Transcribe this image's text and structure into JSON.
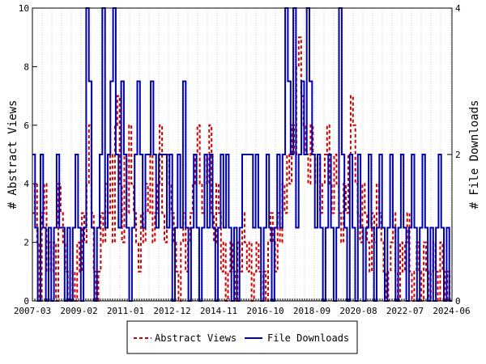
{
  "chart_data": {
    "type": "line",
    "ylabel_left": "# Abstract Views",
    "ylabel_right": "# File Downloads",
    "x_ticks": [
      "2007-03",
      "2009-02",
      "2011-01",
      "2012-12",
      "2014-11",
      "2016-10",
      "2018-09",
      "2020-08",
      "2022-07",
      "2024-06"
    ],
    "y_left_ticks": [
      "0",
      "2",
      "4",
      "6",
      "8",
      "10"
    ],
    "y_right_ticks": [
      "0",
      "2",
      "4"
    ],
    "ylim_left": [
      0,
      10
    ],
    "ylim_right": [
      0,
      4
    ],
    "x_range": [
      "2007-03",
      "2025-11"
    ],
    "legend_position": "bottom",
    "series": [
      {
        "name": "Abstract Views",
        "axis": "left",
        "color": "#cc0000",
        "style": "dashed",
        "values": [
          3,
          4,
          2,
          0,
          3,
          4,
          1,
          2,
          1,
          2,
          0,
          4,
          3,
          2,
          1,
          0,
          0,
          1,
          0,
          2,
          1,
          3,
          2,
          4,
          6,
          3,
          1,
          0,
          1,
          3,
          2,
          4,
          3,
          5,
          2,
          6,
          7,
          4,
          2,
          5,
          3,
          6,
          4,
          3,
          2,
          1,
          3,
          2,
          4,
          3,
          5,
          2,
          3,
          4,
          6,
          3,
          2,
          5,
          4,
          3,
          2,
          1,
          0,
          2,
          3,
          1,
          2,
          3,
          4,
          5,
          6,
          4,
          3,
          5,
          4,
          6,
          3,
          2,
          4,
          3,
          1,
          2,
          0,
          1,
          2,
          1,
          0,
          2,
          1,
          3,
          2,
          1,
          2,
          0,
          1,
          2,
          1,
          0,
          1,
          0,
          2,
          3,
          2,
          1,
          3,
          2,
          4,
          3,
          5,
          4,
          6,
          5,
          8,
          9,
          7,
          6,
          5,
          4,
          6,
          5,
          4,
          5,
          3,
          4,
          5,
          6,
          4,
          3,
          5,
          4,
          3,
          2,
          4,
          3,
          5,
          7,
          6,
          4,
          3,
          2,
          4,
          3,
          2,
          1,
          3,
          2,
          4,
          3,
          2,
          1,
          0,
          1,
          2,
          3,
          1,
          0,
          2,
          1,
          2,
          3,
          1,
          0,
          1,
          2,
          1,
          0,
          2,
          1,
          0,
          1,
          2,
          1,
          0,
          2,
          1,
          0,
          1,
          0
        ]
      },
      {
        "name": "File Downloads",
        "axis": "right",
        "color": "#0000aa",
        "style": "solid",
        "values": [
          2,
          1,
          0,
          2,
          1,
          0,
          1,
          0,
          1,
          2,
          1,
          1,
          0,
          1,
          0,
          1,
          2,
          1,
          0,
          1,
          4,
          3,
          1,
          0,
          1,
          2,
          4,
          1,
          2,
          3,
          4,
          2,
          1,
          3,
          2,
          1,
          0,
          1,
          2,
          3,
          2,
          1,
          2,
          2,
          3,
          2,
          1,
          2,
          2,
          2,
          1,
          2,
          0,
          1,
          2,
          1,
          3,
          1,
          0,
          1,
          2,
          1,
          0,
          1,
          2,
          1,
          2,
          1,
          0,
          1,
          2,
          1,
          2,
          1,
          0,
          1,
          0,
          1,
          2,
          2,
          2,
          2,
          1,
          2,
          1,
          0,
          1,
          2,
          1,
          0,
          1,
          2,
          1,
          2,
          4,
          3,
          2,
          4,
          1,
          2,
          3,
          2,
          4,
          3,
          2,
          1,
          2,
          1,
          0,
          1,
          2,
          1,
          0,
          1,
          4,
          2,
          1,
          0,
          2,
          1,
          0,
          2,
          1,
          0,
          1,
          2,
          1,
          0,
          1,
          2,
          1,
          0,
          1,
          2,
          1,
          0,
          1,
          2,
          1,
          0,
          1,
          2,
          1,
          0,
          1,
          2,
          1,
          0,
          1,
          0,
          1,
          2,
          1,
          0,
          1,
          0
        ]
      }
    ]
  }
}
